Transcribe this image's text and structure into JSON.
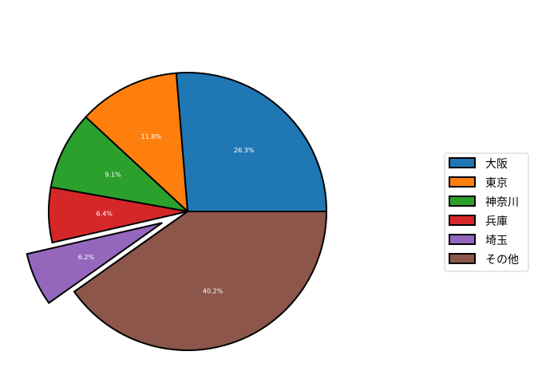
{
  "chart_data": {
    "type": "pie",
    "title": "",
    "slices": [
      {
        "label": "大阪",
        "value": 26.3,
        "pct_label": "26.3%",
        "color": "#1f77b4",
        "explode": 0
      },
      {
        "label": "東京",
        "value": 11.8,
        "pct_label": "11.8%",
        "color": "#ff7f0e",
        "explode": 0
      },
      {
        "label": "神奈川",
        "value": 9.1,
        "pct_label": "9.1%",
        "color": "#2ca02c",
        "explode": 0
      },
      {
        "label": "兵庫",
        "value": 6.4,
        "pct_label": "6.4%",
        "color": "#d62728",
        "explode": 0
      },
      {
        "label": "埼玉",
        "value": 6.2,
        "pct_label": "6.2%",
        "color": "#9467bd",
        "explode": 0.2
      },
      {
        "label": "その他",
        "value": 40.2,
        "pct_label": "40.2%",
        "color": "#8c564b",
        "explode": 0
      }
    ],
    "start_angle_deg": 0,
    "direction": "counterclockwise",
    "edge_color": "#000000",
    "legend": "center-right"
  }
}
